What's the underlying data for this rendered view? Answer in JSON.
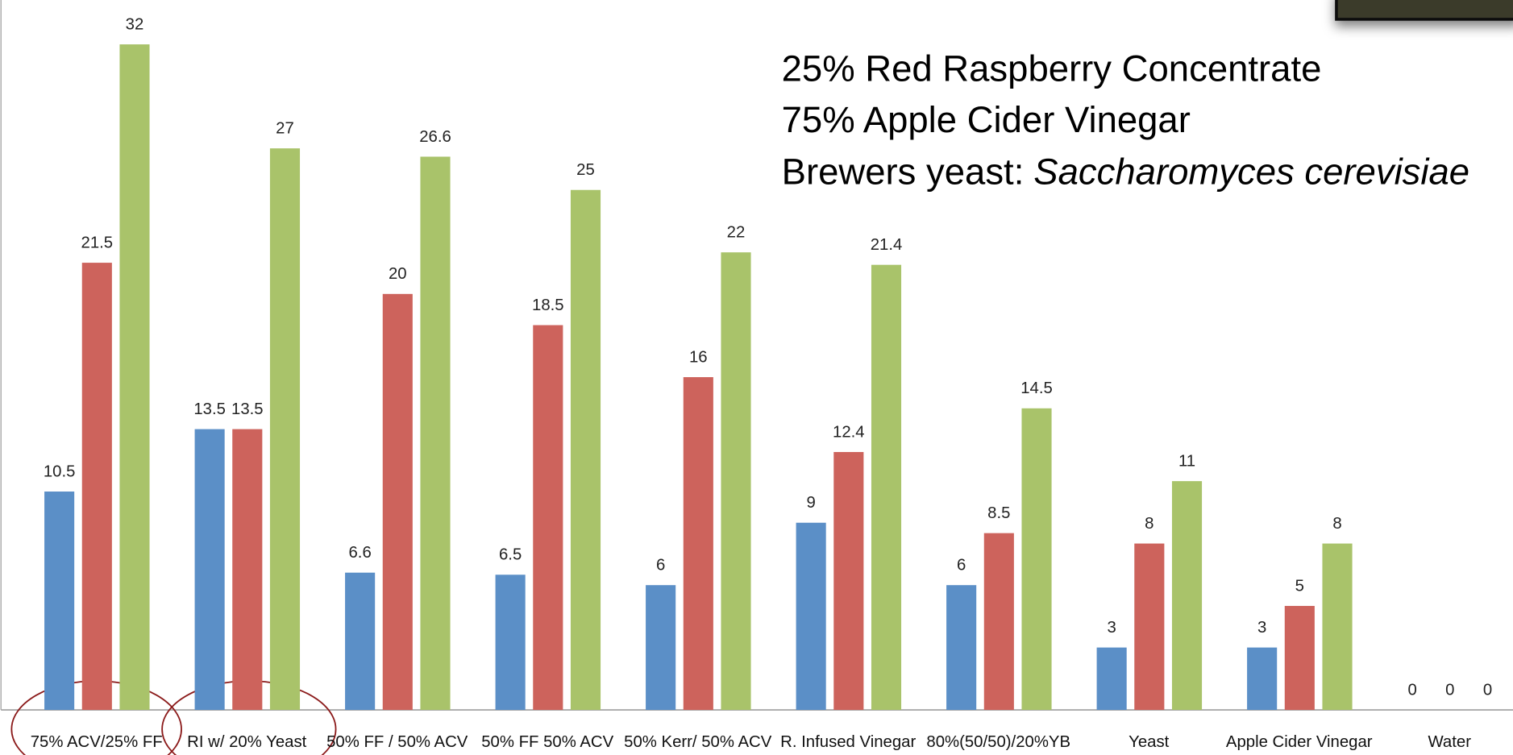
{
  "chart_data": {
    "type": "bar",
    "annotations": [
      "25% Red Raspberry Concentrate",
      "75% Apple Cider Vinegar"
    ],
    "annotation_prefix": "Brewers yeast:",
    "annotation_species": "Saccharomyces cerevisiae",
    "categories": [
      "75% ACV/25% FF",
      "RI w/ 20% Yeast",
      "50% FF / 50% ACV",
      "50% FF 50% ACV",
      "50% Kerr/ 50% ACV",
      "R. Infused Vinegar",
      "80%(50/50)/20%YB",
      "Yeast",
      "Apple Cider Vinegar",
      "Water"
    ],
    "series": [
      {
        "color": "#5b8fc7",
        "values": [
          10.5,
          13.5,
          6.6,
          6.5,
          6,
          9,
          6,
          3,
          3,
          0
        ]
      },
      {
        "color": "#cd635c",
        "values": [
          21.5,
          13.5,
          20,
          18.5,
          16,
          12.4,
          8.5,
          8,
          5,
          0
        ]
      },
      {
        "color": "#a9c36a",
        "values": [
          32,
          27,
          26.6,
          25,
          22,
          21.4,
          14.5,
          11,
          8,
          0
        ]
      }
    ]
  }
}
